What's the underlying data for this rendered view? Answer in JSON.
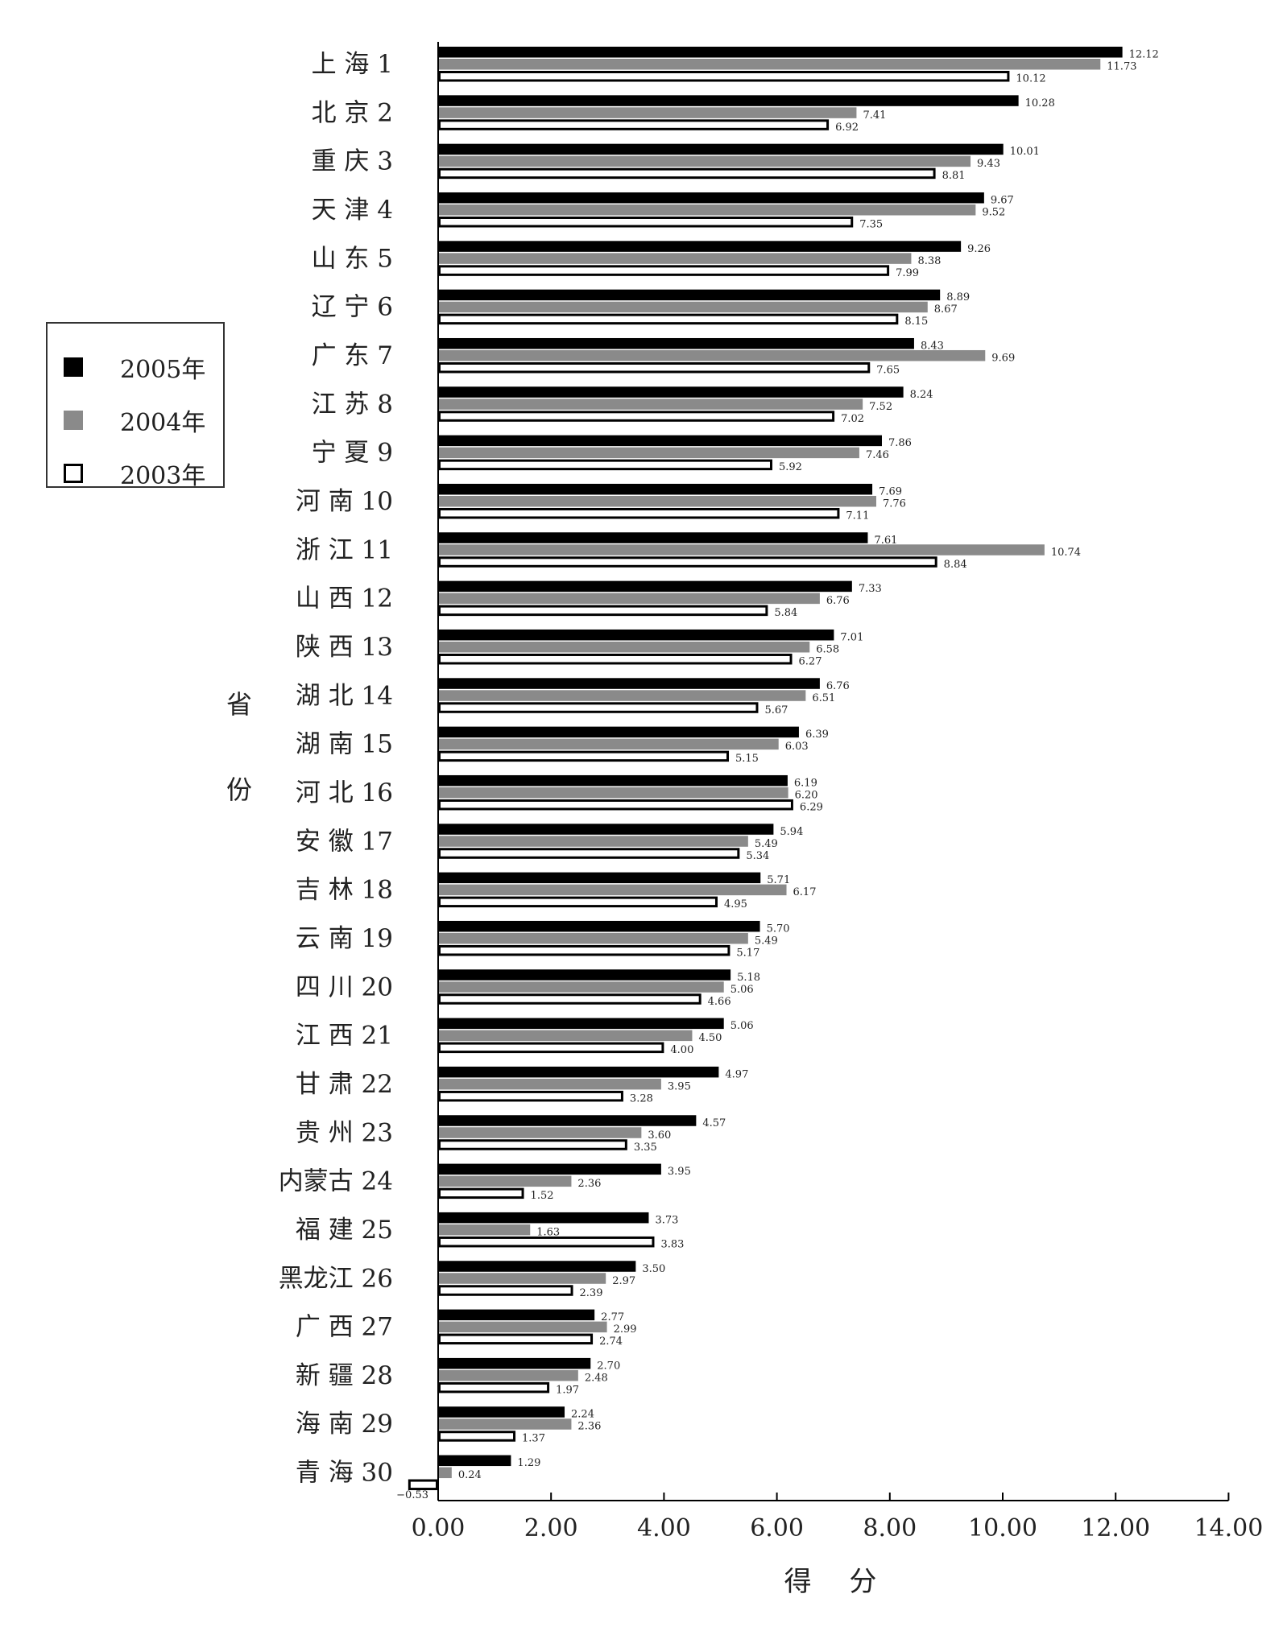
{
  "chart_data": {
    "type": "bar",
    "orientation": "horizontal",
    "ylabel": "省 份",
    "xlabel": "得 分",
    "xlim": [
      0,
      14
    ],
    "x_ticks": [
      "0.00",
      "2.00",
      "4.00",
      "6.00",
      "8.00",
      "10.00",
      "12.00",
      "14.00"
    ],
    "grid": false,
    "legend_position": "left",
    "categories": [
      "上 海 1",
      "北 京 2",
      "重 庆 3",
      "天 津 4",
      "山 东 5",
      "辽 宁 6",
      "广 东 7",
      "江 苏 8",
      "宁 夏 9",
      "河 南 10",
      "浙 江 11",
      "山 西 12",
      "陕 西 13",
      "湖 北 14",
      "湖 南 15",
      "河 北 16",
      "安 徽 17",
      "吉 林 18",
      "云 南 19",
      "四 川 20",
      "江 西 21",
      "甘 肃 22",
      "贵 州 23",
      "内蒙古 24",
      "福 建 25",
      "黑龙江 26",
      "广 西 27",
      "新 疆 28",
      "海 南 29",
      "青 海 30"
    ],
    "series": [
      {
        "name": "2005年",
        "color": "#000000",
        "values": [
          12.12,
          10.28,
          10.01,
          9.67,
          9.26,
          8.89,
          8.43,
          8.24,
          7.86,
          7.69,
          7.61,
          7.33,
          7.01,
          6.76,
          6.39,
          6.19,
          5.94,
          5.71,
          5.7,
          5.18,
          5.06,
          4.97,
          4.57,
          3.95,
          3.73,
          3.5,
          2.77,
          2.7,
          2.24,
          1.29
        ],
        "labels": [
          "12.12",
          "10.28",
          "10.01",
          "9.67",
          "9.26",
          "8.89",
          "8.43",
          "8.24",
          "7.86",
          "7.69",
          "7.61",
          "7.33",
          "7.01",
          "6.76",
          "6.39",
          "6.19",
          "5.94",
          "5.71",
          "5.70",
          "5.18",
          "5.06",
          "4.97",
          "4.57",
          "3.95",
          "3.73",
          "3.50",
          "2.77",
          "2.70",
          "2.24",
          "1.29"
        ]
      },
      {
        "name": "2004年",
        "color": "#8a8a8a",
        "values": [
          11.73,
          7.41,
          9.43,
          9.52,
          8.38,
          8.67,
          9.69,
          7.52,
          7.46,
          7.76,
          10.74,
          6.76,
          6.58,
          6.51,
          6.03,
          6.2,
          5.49,
          6.17,
          5.49,
          5.06,
          4.5,
          3.95,
          3.6,
          2.36,
          1.63,
          2.97,
          2.99,
          2.48,
          2.36,
          0.24
        ],
        "labels": [
          "11.73",
          "7.41",
          "9.43",
          "9.52",
          "8.38",
          "8.67",
          "9.69",
          "7.52",
          "7.46",
          "7.76",
          "10.74",
          "6.76",
          "6.58",
          "6.51",
          "6.03",
          "6.20",
          "5.49",
          "6.17",
          "5.49",
          "5.06",
          "4.50",
          "3.95",
          "3.60",
          "2.36",
          "1.63",
          "2.97",
          "2.99",
          "2.48",
          "2.36",
          "0.24"
        ]
      },
      {
        "name": "2003年",
        "color": "#ffffff",
        "values": [
          10.12,
          6.92,
          8.81,
          7.35,
          7.99,
          8.15,
          7.65,
          7.02,
          5.92,
          7.11,
          8.84,
          5.84,
          6.27,
          5.67,
          5.15,
          6.29,
          5.34,
          4.95,
          5.17,
          4.66,
          4.0,
          3.28,
          3.35,
          1.52,
          3.83,
          2.39,
          2.74,
          1.97,
          1.37,
          -0.53
        ],
        "labels": [
          "10.12",
          "6.92",
          "8.81",
          "7.35",
          "7.99",
          "8.15",
          "7.65",
          "7.02",
          "5.92",
          "7.11",
          "8.84",
          "5.84",
          "6.27",
          "5.67",
          "5.15",
          "6.29",
          "5.34",
          "4.95",
          "5.17",
          "4.66",
          "4.00",
          "3.28",
          "3.35",
          "1.52",
          "3.83",
          "2.39",
          "2.74",
          "1.97",
          "1.37",
          "−0.53"
        ]
      }
    ]
  }
}
